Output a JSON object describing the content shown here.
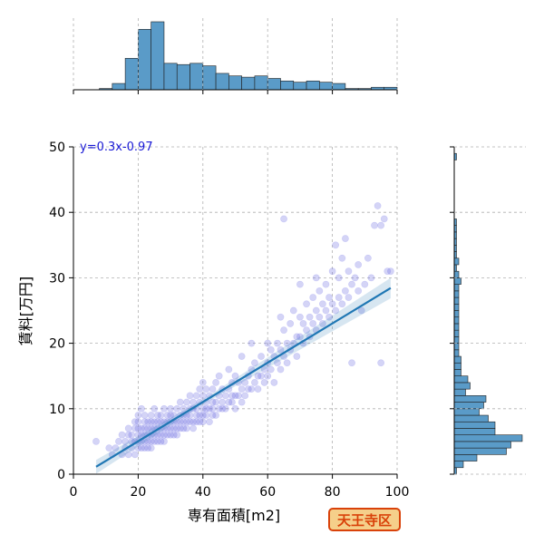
{
  "chart_data": {
    "type": "scatter",
    "title": "",
    "xlabel": "専有面積[m2]",
    "ylabel": "賃料[万円]",
    "xlim": [
      0,
      100
    ],
    "ylim": [
      0,
      50
    ],
    "xticks": [
      "0",
      "20",
      "40",
      "60",
      "80",
      "100"
    ],
    "yticks": [
      "0",
      "10",
      "20",
      "30",
      "40",
      "50"
    ],
    "grid": true,
    "regression": {
      "label": "y=0.3x-0.97",
      "slope": 0.3,
      "intercept": -0.97,
      "x_range": [
        7,
        98
      ]
    },
    "marginal_x_histogram": {
      "bin_edges": [
        0,
        4,
        8,
        12,
        16,
        20,
        24,
        28,
        32,
        36,
        40,
        44,
        48,
        52,
        56,
        60,
        64,
        68,
        72,
        76,
        80,
        84,
        88,
        92,
        96,
        100
      ],
      "counts": [
        0,
        0,
        1,
        5,
        25,
        48,
        54,
        21,
        20,
        21,
        19,
        13,
        11,
        10,
        11,
        9,
        7,
        6,
        7,
        6,
        5,
        1,
        1,
        2,
        2
      ]
    },
    "marginal_y_histogram": {
      "bin_edges": [
        0,
        1,
        2,
        3,
        4,
        5,
        6,
        7,
        8,
        9,
        10,
        11,
        12,
        13,
        14,
        15,
        16,
        17,
        18,
        19,
        20,
        21,
        22,
        23,
        24,
        25,
        26,
        27,
        28,
        29,
        30,
        31,
        32,
        33,
        34,
        35,
        36,
        37,
        38,
        39,
        40,
        41,
        42,
        43,
        44,
        45,
        46,
        47,
        48,
        49,
        50
      ],
      "counts": [
        1,
        4,
        10,
        23,
        25,
        30,
        18,
        18,
        15,
        11,
        13,
        14,
        5,
        7,
        6,
        3,
        3,
        3,
        2,
        2,
        2,
        2,
        2,
        2,
        2,
        2,
        2,
        2,
        2,
        3,
        2,
        1,
        2,
        1,
        1,
        1,
        1,
        1,
        1,
        0,
        0,
        0,
        0,
        0,
        0,
        0,
        0,
        0,
        1,
        0
      ]
    },
    "points": [
      [
        7,
        5
      ],
      [
        11,
        4
      ],
      [
        12,
        3
      ],
      [
        13,
        4
      ],
      [
        14,
        5
      ],
      [
        15,
        3
      ],
      [
        15,
        6
      ],
      [
        16,
        4
      ],
      [
        16,
        5
      ],
      [
        17,
        3
      ],
      [
        17,
        6
      ],
      [
        17,
        7
      ],
      [
        18,
        4
      ],
      [
        18,
        5
      ],
      [
        18,
        6
      ],
      [
        19,
        3
      ],
      [
        19,
        5
      ],
      [
        19,
        7
      ],
      [
        19,
        8
      ],
      [
        20,
        4
      ],
      [
        20,
        5
      ],
      [
        20,
        6
      ],
      [
        20,
        7
      ],
      [
        20,
        8
      ],
      [
        20,
        9
      ],
      [
        21,
        4
      ],
      [
        21,
        5
      ],
      [
        21,
        6
      ],
      [
        21,
        7
      ],
      [
        21,
        10
      ],
      [
        22,
        4
      ],
      [
        22,
        5
      ],
      [
        22,
        6
      ],
      [
        22,
        7
      ],
      [
        22,
        8
      ],
      [
        22,
        9
      ],
      [
        23,
        4
      ],
      [
        23,
        5
      ],
      [
        23,
        6
      ],
      [
        23,
        7
      ],
      [
        23,
        8
      ],
      [
        24,
        4
      ],
      [
        24,
        5
      ],
      [
        24,
        6
      ],
      [
        24,
        7
      ],
      [
        24,
        8
      ],
      [
        24,
        9
      ],
      [
        25,
        5
      ],
      [
        25,
        6
      ],
      [
        25,
        7
      ],
      [
        25,
        8
      ],
      [
        25,
        10
      ],
      [
        26,
        5
      ],
      [
        26,
        6
      ],
      [
        26,
        7
      ],
      [
        26,
        8
      ],
      [
        26,
        9
      ],
      [
        27,
        5
      ],
      [
        27,
        6
      ],
      [
        27,
        7
      ],
      [
        27,
        8
      ],
      [
        27,
        9
      ],
      [
        28,
        5
      ],
      [
        28,
        6
      ],
      [
        28,
        7
      ],
      [
        28,
        8
      ],
      [
        28,
        10
      ],
      [
        29,
        6
      ],
      [
        29,
        7
      ],
      [
        29,
        8
      ],
      [
        29,
        9
      ],
      [
        30,
        6
      ],
      [
        30,
        7
      ],
      [
        30,
        8
      ],
      [
        30,
        9
      ],
      [
        30,
        10
      ],
      [
        31,
        6
      ],
      [
        31,
        7
      ],
      [
        31,
        8
      ],
      [
        31,
        9
      ],
      [
        32,
        6
      ],
      [
        32,
        7
      ],
      [
        32,
        8
      ],
      [
        32,
        10
      ],
      [
        33,
        7
      ],
      [
        33,
        8
      ],
      [
        33,
        9
      ],
      [
        33,
        11
      ],
      [
        34,
        7
      ],
      [
        34,
        8
      ],
      [
        34,
        9
      ],
      [
        34,
        10
      ],
      [
        35,
        7
      ],
      [
        35,
        8
      ],
      [
        35,
        9
      ],
      [
        35,
        11
      ],
      [
        36,
        8
      ],
      [
        36,
        9
      ],
      [
        36,
        10
      ],
      [
        36,
        12
      ],
      [
        37,
        7
      ],
      [
        37,
        8
      ],
      [
        37,
        10
      ],
      [
        37,
        11
      ],
      [
        38,
        8
      ],
      [
        38,
        9
      ],
      [
        38,
        10
      ],
      [
        38,
        12
      ],
      [
        39,
        8
      ],
      [
        39,
        9
      ],
      [
        39,
        11
      ],
      [
        39,
        13
      ],
      [
        40,
        8
      ],
      [
        40,
        9
      ],
      [
        40,
        10
      ],
      [
        40,
        12
      ],
      [
        40,
        14
      ],
      [
        41,
        9
      ],
      [
        41,
        10
      ],
      [
        41,
        11
      ],
      [
        41,
        13
      ],
      [
        42,
        8
      ],
      [
        42,
        10
      ],
      [
        42,
        12
      ],
      [
        43,
        9
      ],
      [
        43,
        10
      ],
      [
        43,
        11
      ],
      [
        43,
        13
      ],
      [
        44,
        9
      ],
      [
        44,
        11
      ],
      [
        44,
        14
      ],
      [
        45,
        10
      ],
      [
        45,
        12
      ],
      [
        45,
        15
      ],
      [
        46,
        10
      ],
      [
        46,
        11
      ],
      [
        46,
        13
      ],
      [
        47,
        10
      ],
      [
        47,
        12
      ],
      [
        48,
        11
      ],
      [
        48,
        13
      ],
      [
        48,
        16
      ],
      [
        49,
        11
      ],
      [
        49,
        12
      ],
      [
        49,
        14
      ],
      [
        50,
        10
      ],
      [
        50,
        12
      ],
      [
        50,
        15
      ],
      [
        51,
        12
      ],
      [
        51,
        14
      ],
      [
        52,
        11
      ],
      [
        52,
        13
      ],
      [
        52,
        18
      ],
      [
        53,
        12
      ],
      [
        53,
        14
      ],
      [
        54,
        13
      ],
      [
        54,
        15
      ],
      [
        55,
        13
      ],
      [
        55,
        16
      ],
      [
        55,
        20
      ],
      [
        56,
        14
      ],
      [
        56,
        17
      ],
      [
        57,
        13
      ],
      [
        57,
        15
      ],
      [
        58,
        15
      ],
      [
        58,
        18
      ],
      [
        59,
        16
      ],
      [
        59,
        14
      ],
      [
        60,
        15
      ],
      [
        60,
        17
      ],
      [
        60,
        20
      ],
      [
        61,
        16
      ],
      [
        61,
        19
      ],
      [
        62,
        14
      ],
      [
        62,
        18
      ],
      [
        63,
        17
      ],
      [
        63,
        20
      ],
      [
        64,
        16
      ],
      [
        64,
        19
      ],
      [
        64,
        24
      ],
      [
        65,
        18
      ],
      [
        65,
        22
      ],
      [
        65,
        39
      ],
      [
        66,
        17
      ],
      [
        66,
        20
      ],
      [
        67,
        19
      ],
      [
        67,
        23
      ],
      [
        68,
        20
      ],
      [
        68,
        25
      ],
      [
        69,
        18
      ],
      [
        69,
        21
      ],
      [
        70,
        21
      ],
      [
        70,
        24
      ],
      [
        70,
        29
      ],
      [
        71,
        20
      ],
      [
        71,
        23
      ],
      [
        72,
        22
      ],
      [
        72,
        26
      ],
      [
        73,
        21
      ],
      [
        73,
        24
      ],
      [
        74,
        23
      ],
      [
        74,
        27
      ],
      [
        75,
        22
      ],
      [
        75,
        25
      ],
      [
        75,
        30
      ],
      [
        76,
        24
      ],
      [
        76,
        28
      ],
      [
        77,
        23
      ],
      [
        77,
        26
      ],
      [
        78,
        25
      ],
      [
        78,
        29
      ],
      [
        79,
        24
      ],
      [
        79,
        27
      ],
      [
        80,
        26
      ],
      [
        80,
        31
      ],
      [
        81,
        25
      ],
      [
        81,
        35
      ],
      [
        82,
        27
      ],
      [
        82,
        30
      ],
      [
        83,
        26
      ],
      [
        83,
        33
      ],
      [
        84,
        28
      ],
      [
        84,
        36
      ],
      [
        85,
        27
      ],
      [
        85,
        31
      ],
      [
        86,
        29
      ],
      [
        86,
        17
      ],
      [
        87,
        30
      ],
      [
        88,
        28
      ],
      [
        88,
        32
      ],
      [
        89,
        25
      ],
      [
        90,
        29
      ],
      [
        91,
        33
      ],
      [
        92,
        30
      ],
      [
        93,
        38
      ],
      [
        94,
        41
      ],
      [
        95,
        17
      ],
      [
        95,
        38
      ],
      [
        96,
        39
      ],
      [
        97,
        31
      ],
      [
        98,
        31
      ]
    ]
  },
  "badge": {
    "label": "天王寺区"
  }
}
